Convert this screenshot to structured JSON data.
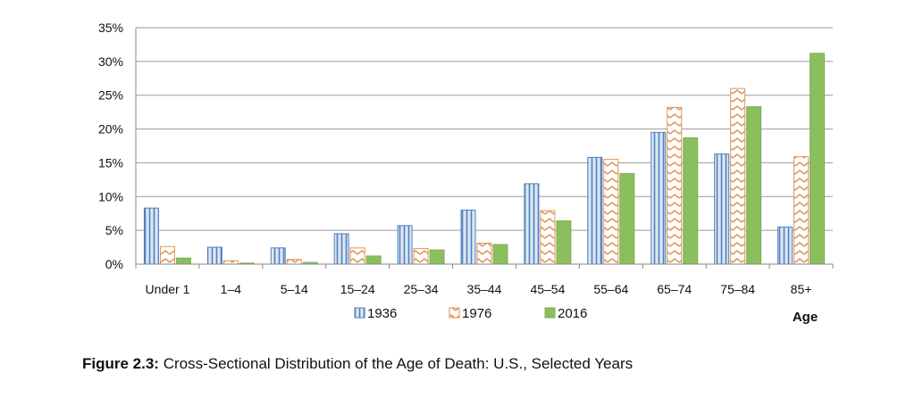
{
  "figure": {
    "label": "Figure 2.3:",
    "caption": "Cross-Sectional Distribution of the Age of Death:  U.S., Selected Years"
  },
  "chart_data": {
    "type": "bar",
    "categories": [
      "Under 1",
      "1–4",
      "5–14",
      "15–24",
      "25–34",
      "35–44",
      "45–54",
      "55–64",
      "65–74",
      "75–84",
      "85+"
    ],
    "series": [
      {
        "name": "1936",
        "values": [
          8.3,
          2.5,
          2.4,
          4.5,
          5.7,
          8.0,
          11.9,
          15.8,
          19.5,
          16.3,
          5.5
        ],
        "color": "#4F81BD",
        "fill": "#DCE6F4",
        "pattern": "vertical-stripes"
      },
      {
        "name": "1976",
        "values": [
          2.6,
          0.5,
          0.7,
          2.4,
          2.3,
          3.1,
          7.9,
          15.5,
          23.2,
          26.0,
          15.9
        ],
        "color": "#E0965A",
        "fill": "#FFFFFF",
        "pattern": "zigzag"
      },
      {
        "name": "2016",
        "values": [
          0.9,
          0.15,
          0.25,
          1.2,
          2.1,
          2.9,
          6.4,
          13.4,
          18.7,
          23.3,
          31.2
        ],
        "color": "#7FB050",
        "fill": "#8BBF5E",
        "pattern": "solid"
      }
    ],
    "yticks": [
      "0%",
      "5%",
      "10%",
      "15%",
      "20%",
      "25%",
      "30%",
      "35%"
    ],
    "ylim": [
      0,
      35
    ],
    "xlabel": "Age",
    "ylabel": "",
    "grid": true,
    "legend_position": "bottom"
  }
}
